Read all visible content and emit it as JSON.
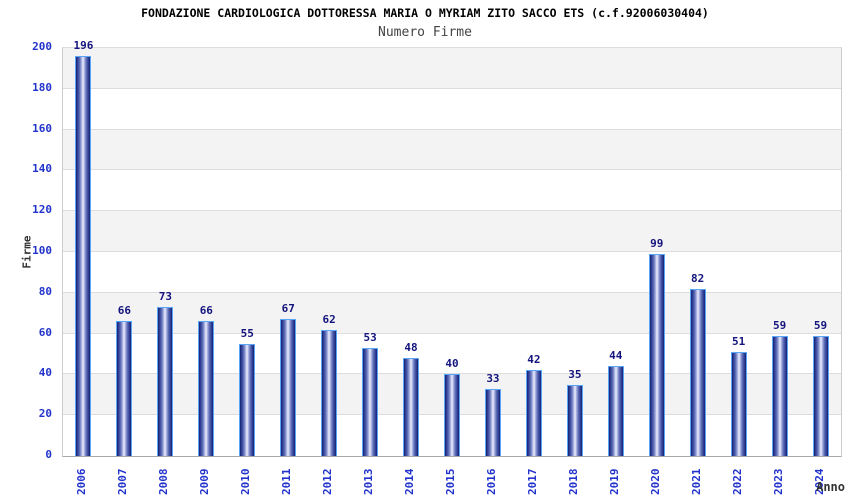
{
  "chart_data": {
    "type": "bar",
    "title": "FONDAZIONE CARDIOLOGICA DOTTORESSA MARIA O MYRIAM ZITO SACCO ETS (c.f.92006030404)",
    "subtitle": "Numero Firme",
    "xlabel": "Anno",
    "ylabel": "Firme",
    "categories": [
      "2006",
      "2007",
      "2008",
      "2009",
      "2010",
      "2011",
      "2012",
      "2013",
      "2014",
      "2015",
      "2016",
      "2017",
      "2018",
      "2019",
      "2020",
      "2021",
      "2022",
      "2023",
      "2024"
    ],
    "values": [
      196,
      66,
      73,
      66,
      55,
      67,
      62,
      53,
      48,
      40,
      33,
      42,
      35,
      44,
      99,
      82,
      51,
      59,
      59
    ],
    "ylim": [
      0,
      200
    ],
    "ytick_step": 20,
    "grid": "horizontal-bands",
    "legend": "none",
    "colors": {
      "bar_dark": "#16226e",
      "bar_mid": "#5a69b4",
      "bar_light": "#aab3e2",
      "bar_highlight": "#eef0fb",
      "bar_border": "#58a6f8",
      "tick_label": "#2233cc",
      "value_label": "#14147e",
      "band_gray": "#f3f3f3",
      "gridline": "#dddddd",
      "axis_title": "#333333",
      "title_color": "#000000",
      "subtitle_color": "#444444"
    }
  }
}
